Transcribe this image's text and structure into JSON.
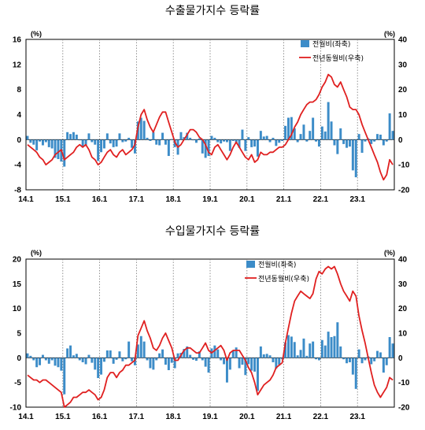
{
  "chart_data": [
    {
      "type": "bar+line",
      "title": "수출물가지수 등락률",
      "left_unit": "(%)",
      "right_unit": "(%)",
      "left_ylim": [
        -8,
        16
      ],
      "right_ylim": [
        -20,
        40
      ],
      "left_ticks": [
        -8,
        -4,
        0,
        4,
        8,
        12,
        16
      ],
      "right_ticks": [
        -20,
        -10,
        0,
        10,
        20,
        30,
        40
      ],
      "x_ticks": [
        "14.1",
        "15.1",
        "16.1",
        "17.1",
        "18.1",
        "19.1",
        "20.1",
        "21.1",
        "22.1",
        "23.1"
      ],
      "start": "2014-01",
      "legend_position": "top-right",
      "grid": "vertical dotted at January",
      "series": [
        {
          "name": "전월비(좌축)",
          "axis": "left",
          "kind": "bar",
          "color": "#3c8cc8",
          "values": [
            0.6,
            -0.5,
            -0.8,
            -1.7,
            -0.3,
            -0.9,
            -0.4,
            -1.2,
            -1.4,
            -2.9,
            -3.1,
            -3.5,
            -4.3,
            1.2,
            0.9,
            1.2,
            0.8,
            -0.1,
            -1.1,
            -1.0,
            1.0,
            -0.4,
            -0.8,
            -3.4,
            -2.0,
            -1.4,
            1.0,
            -0.6,
            -1.2,
            -1.1,
            1.0,
            -0.4,
            -0.3,
            0.3,
            -1.3,
            -2.2,
            2.9,
            3.5,
            3.0,
            0.3,
            -0.2,
            1.2,
            -0.8,
            -0.9,
            1.1,
            -0.8,
            -2.6,
            0.1,
            -1.2,
            -2.4,
            1.2,
            0.4,
            1.1,
            0.3,
            -0.1,
            -0.5,
            0.2,
            -2.2,
            -2.9,
            -2.6,
            0.6,
            0.3,
            -0.4,
            -0.6,
            -0.3,
            -0.4,
            -1.8,
            -0.2,
            -0.5,
            -1.3,
            1.6,
            -1.8,
            0.4,
            -1.2,
            -1.1,
            -2.7,
            1.4,
            0.5,
            0.6,
            -0.4,
            0.3,
            -1.0,
            -0.5,
            -0.2,
            2.2,
            3.5,
            3.6,
            1.8,
            -0.4,
            0.9,
            2.4,
            -0.3,
            1.4,
            3.5,
            -0.3,
            -1.1,
            2.1,
            1.3,
            6.0,
            2.9,
            -0.9,
            -2.3,
            1.8,
            -0.7,
            -1.3,
            -1.1,
            -4.9,
            -6.0,
            0.9,
            -2.1,
            -0.3,
            0.2,
            -0.7,
            -0.3,
            0.9,
            0.8,
            -0.9,
            -0.3,
            4.2,
            1.4
          ]
        },
        {
          "name": "전년동월비(우축)",
          "axis": "right",
          "kind": "line",
          "color": "#e02020",
          "values": [
            -2,
            -3,
            -4,
            -5,
            -7,
            -8,
            -10,
            -9,
            -8,
            -6,
            -5,
            -4,
            -8,
            -7,
            -6,
            -5,
            -3,
            -2,
            -3,
            -2,
            -4,
            -7,
            -8,
            -10,
            -9,
            -7,
            -5,
            -4,
            -6,
            -7,
            -5,
            -4,
            -6,
            -5,
            -4,
            -2,
            5,
            10,
            12,
            8,
            5,
            3,
            6,
            9,
            11,
            11,
            7,
            3,
            -1,
            -3,
            -2,
            0,
            2,
            4,
            4,
            3,
            1,
            0,
            -2,
            -5,
            -6,
            -3,
            -2,
            -4,
            -6,
            -8,
            -6,
            -3,
            -1,
            -3,
            -5,
            -7,
            -8,
            -6,
            -9,
            -8,
            -5,
            -6,
            -6,
            -5,
            -5,
            -4,
            -3,
            -3,
            -2,
            0,
            2,
            5,
            7,
            10,
            12,
            14,
            15,
            15,
            16,
            18,
            21,
            23,
            26,
            25,
            22,
            21,
            23,
            20,
            17,
            13,
            12,
            12,
            10,
            6,
            3,
            0,
            -3,
            -6,
            -9,
            -13,
            -16,
            -14,
            -8,
            -10
          ]
        }
      ]
    },
    {
      "type": "bar+line",
      "title": "수입물가지수 등락률",
      "left_unit": "(%)",
      "right_unit": "(%)",
      "left_ylim": [
        -10,
        20
      ],
      "right_ylim": [
        -20,
        40
      ],
      "left_ticks": [
        -10,
        -5,
        0,
        5,
        10,
        15,
        20
      ],
      "right_ticks": [
        -20,
        -10,
        0,
        10,
        20,
        30,
        40
      ],
      "x_ticks": [
        "14.1",
        "15.1",
        "16.1",
        "17.1",
        "18.1",
        "19.1",
        "20.1",
        "21.1",
        "22.1",
        "23.1"
      ],
      "start": "2014-01",
      "legend_position": "top-right",
      "grid": "vertical dotted at January",
      "series": [
        {
          "name": "전월비(좌축)",
          "axis": "left",
          "kind": "bar",
          "color": "#3c8cc8",
          "values": [
            0.9,
            0.4,
            -0.5,
            -1.9,
            -1.5,
            0.6,
            -0.5,
            -1.2,
            -0.5,
            -1.6,
            -1.9,
            -2.6,
            -7.4,
            1.9,
            2.5,
            0.5,
            0.8,
            -0.5,
            -0.9,
            -1.3,
            0.6,
            -1.0,
            -2.4,
            -4.1,
            -3.4,
            -0.8,
            1.5,
            1.5,
            -1.2,
            -0.4,
            1.3,
            -0.7,
            -0.3,
            3.3,
            -0.7,
            -1.5,
            2.7,
            4.4,
            3.3,
            -0.5,
            -2.1,
            -2.4,
            -0.5,
            0.9,
            1.7,
            -1.4,
            -2.5,
            -1.0,
            -2.1,
            0.9,
            1.0,
            1.8,
            2.3,
            0.6,
            -0.4,
            -0.6,
            1.3,
            -0.5,
            -1.8,
            -3.0,
            1.9,
            2.5,
            1.7,
            -0.5,
            -1.3,
            -5.0,
            -2.4,
            1.5,
            2.1,
            -2.1,
            -1.4,
            -3.5,
            -1.3,
            -2.6,
            -2.8,
            -6.7,
            2.3,
            0.7,
            0.8,
            0.5,
            -0.9,
            -2.2,
            -1.4,
            -0.3,
            3.1,
            4.6,
            4.3,
            3.2,
            0.5,
            1.6,
            3.9,
            0.4,
            2.9,
            3.3,
            -0.3,
            -0.5,
            3.6,
            2.5,
            5.3,
            4.2,
            4.4,
            7.2,
            2.3,
            -0.3,
            -1.1,
            -0.9,
            -3.4,
            -6.3,
            1.7,
            -1.1,
            -0.5,
            0.3,
            -1.3,
            -0.7,
            1.4,
            1.1,
            -3.0,
            -1.5,
            4.2,
            2.9
          ]
        },
        {
          "name": "전년동월비(우축)",
          "axis": "right",
          "kind": "line",
          "color": "#e02020",
          "values": [
            -7,
            -8,
            -9,
            -9,
            -10,
            -9,
            -9,
            -10,
            -11,
            -12,
            -13,
            -14,
            -20,
            -19,
            -18,
            -16,
            -16,
            -15,
            -14,
            -14,
            -13,
            -14,
            -15,
            -17,
            -16,
            -13,
            -8,
            -6,
            -6,
            -8,
            -6,
            -5,
            -3,
            -3,
            -2,
            -1,
            9,
            12,
            15,
            11,
            8,
            4,
            3,
            5,
            8,
            10,
            7,
            4,
            -1,
            -1,
            1,
            3,
            4,
            4,
            3,
            2,
            2,
            4,
            6,
            3,
            2,
            3,
            4,
            5,
            3,
            -1,
            2,
            3,
            3,
            3,
            1,
            -1,
            -4,
            -6,
            -10,
            -15,
            -13,
            -11,
            -10,
            -9,
            -7,
            -4,
            -3,
            -2,
            6,
            12,
            18,
            23,
            25,
            27,
            26,
            25,
            24,
            26,
            32,
            35,
            34,
            36,
            37,
            36,
            37,
            34,
            30,
            27,
            25,
            23,
            27,
            25,
            17,
            11,
            6,
            0,
            -6,
            -11,
            -14,
            -16,
            -14,
            -12,
            -8,
            -9
          ]
        }
      ]
    }
  ]
}
